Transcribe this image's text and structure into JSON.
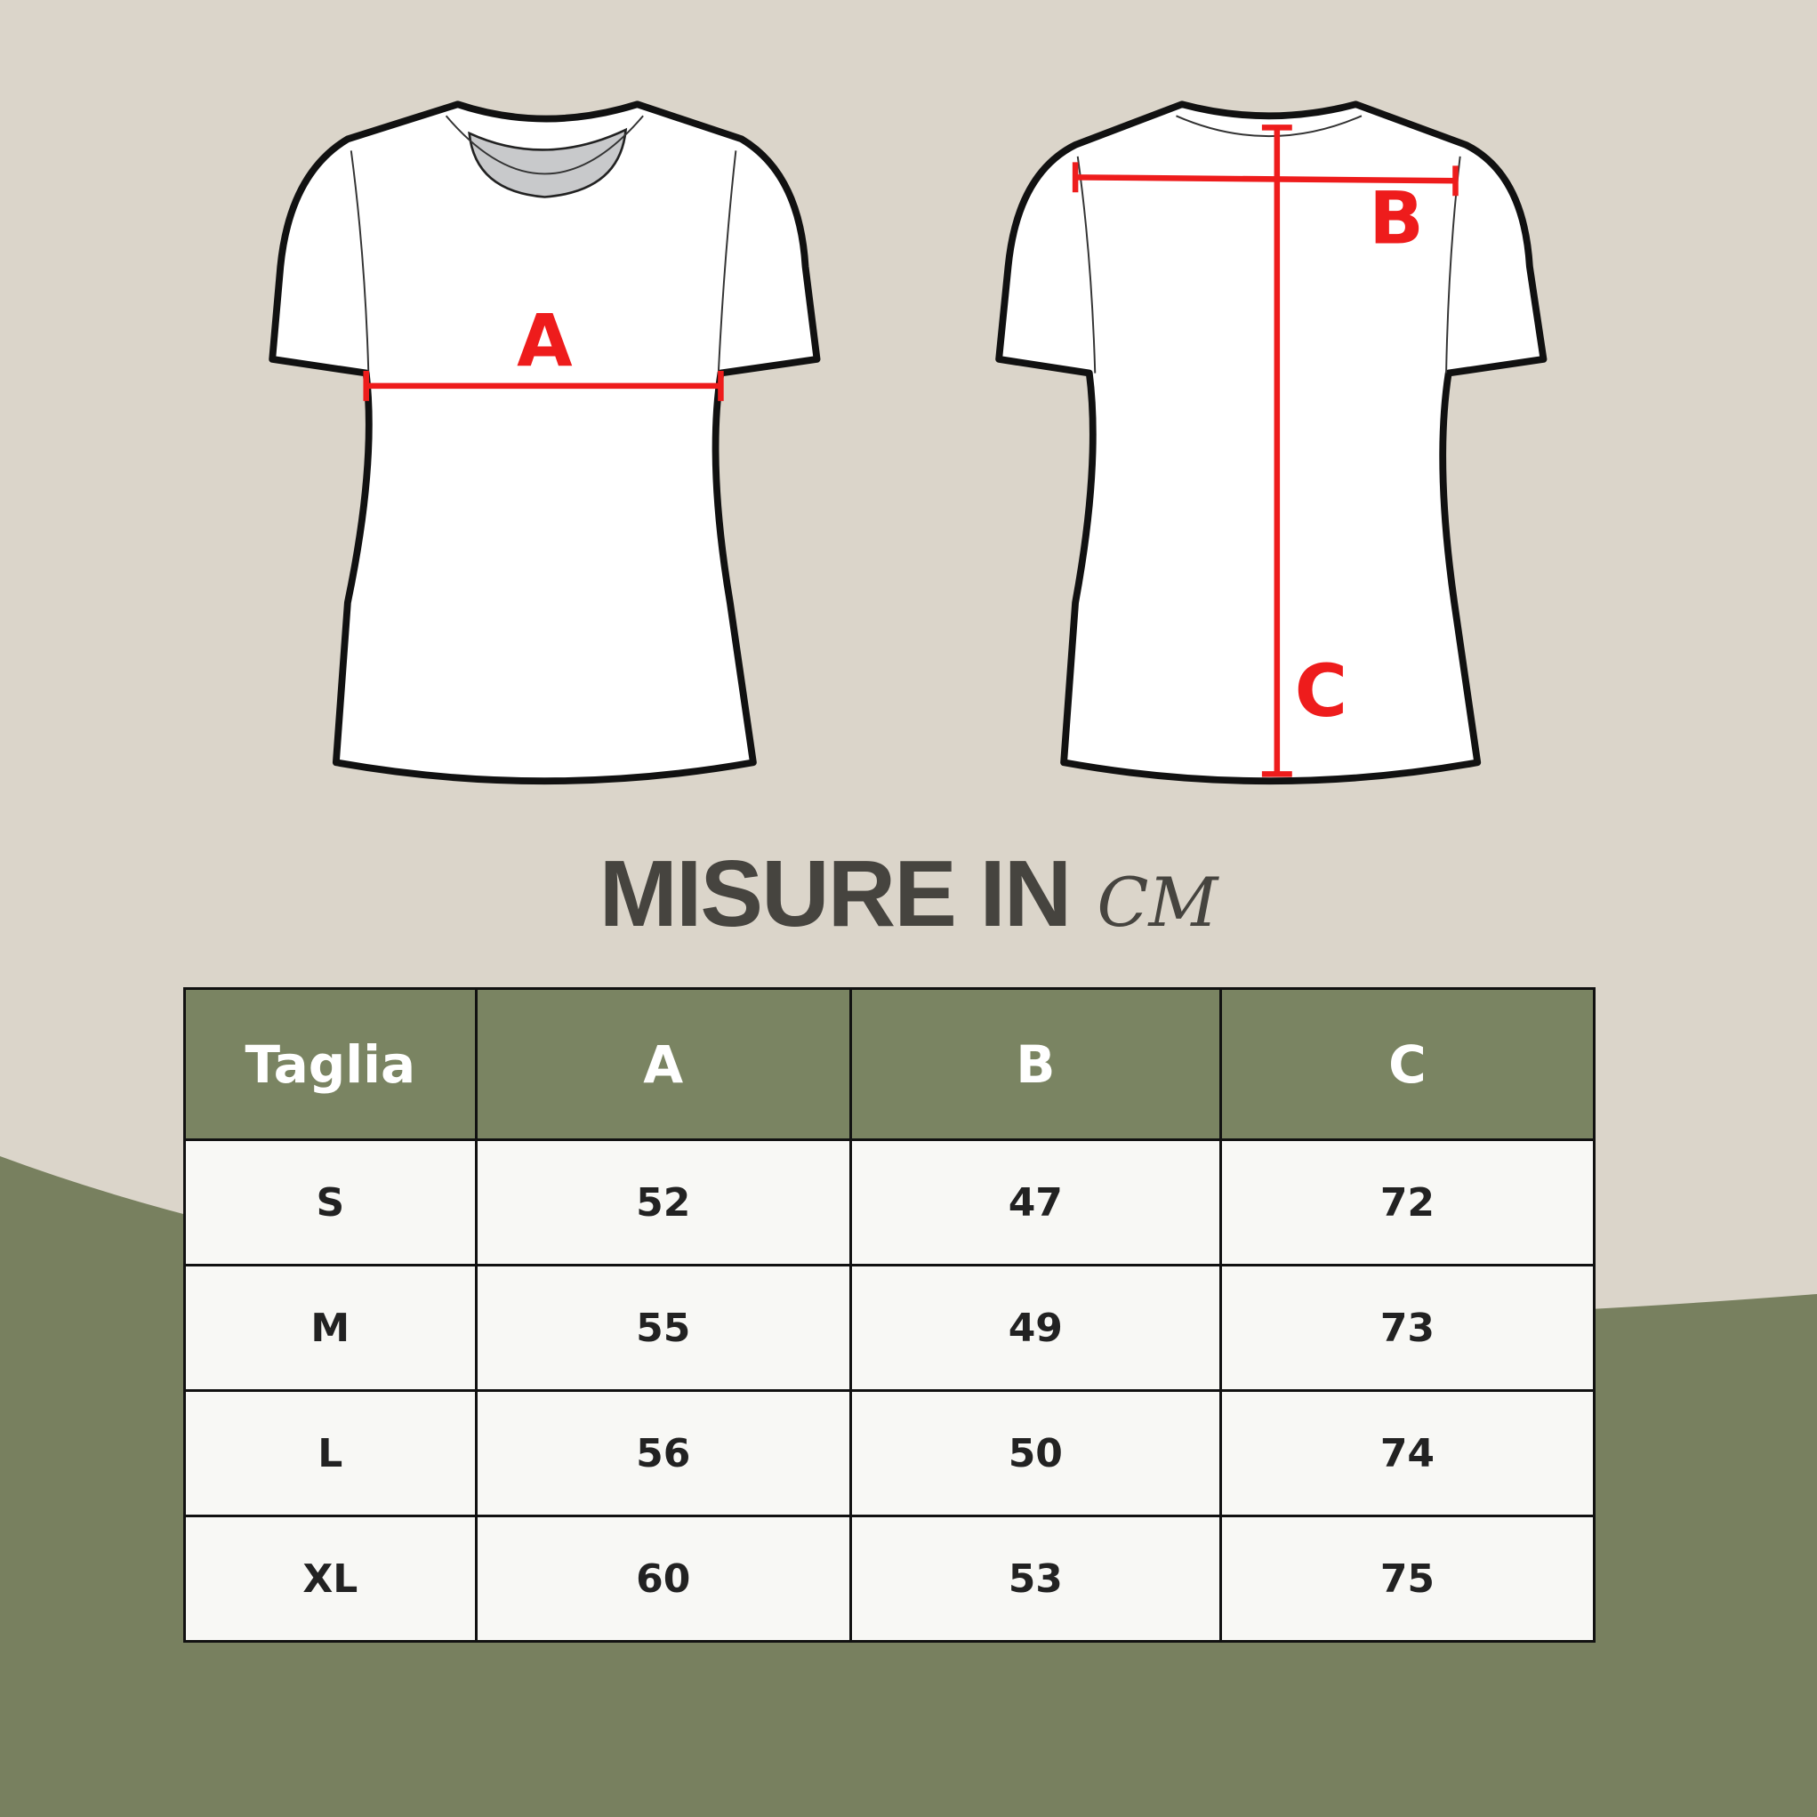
{
  "diagram": {
    "front_label": "A",
    "back_labels": [
      "B",
      "C"
    ],
    "accent_color": "#ee1c1c"
  },
  "title": {
    "main": "MISURE IN",
    "unit": "CM"
  },
  "table": {
    "headers": [
      "Taglia",
      "A",
      "B",
      "C"
    ],
    "rows": [
      [
        "S",
        "52",
        "47",
        "72"
      ],
      [
        "M",
        "55",
        "49",
        "73"
      ],
      [
        "L",
        "56",
        "50",
        "74"
      ],
      [
        "XL",
        "60",
        "53",
        "75"
      ]
    ],
    "header_color": "#7a8462"
  },
  "colors": {
    "background": "#dbd5ca",
    "green": "#78805f"
  }
}
